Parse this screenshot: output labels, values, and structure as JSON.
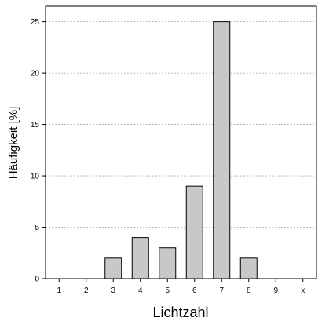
{
  "chart_data": {
    "type": "bar",
    "categories": [
      "1",
      "2",
      "3",
      "4",
      "5",
      "6",
      "7",
      "8",
      "9",
      "x"
    ],
    "values": [
      0,
      0,
      2,
      4,
      3,
      9,
      25,
      2,
      0,
      0
    ],
    "xlabel": "Lichtzahl",
    "ylabel": "Häufigkeit [%]",
    "ylim": [
      0,
      26.5
    ],
    "yticks": [
      0,
      5,
      10,
      15,
      20,
      25
    ],
    "grid": true,
    "bar_color": "#c8c8c8"
  }
}
